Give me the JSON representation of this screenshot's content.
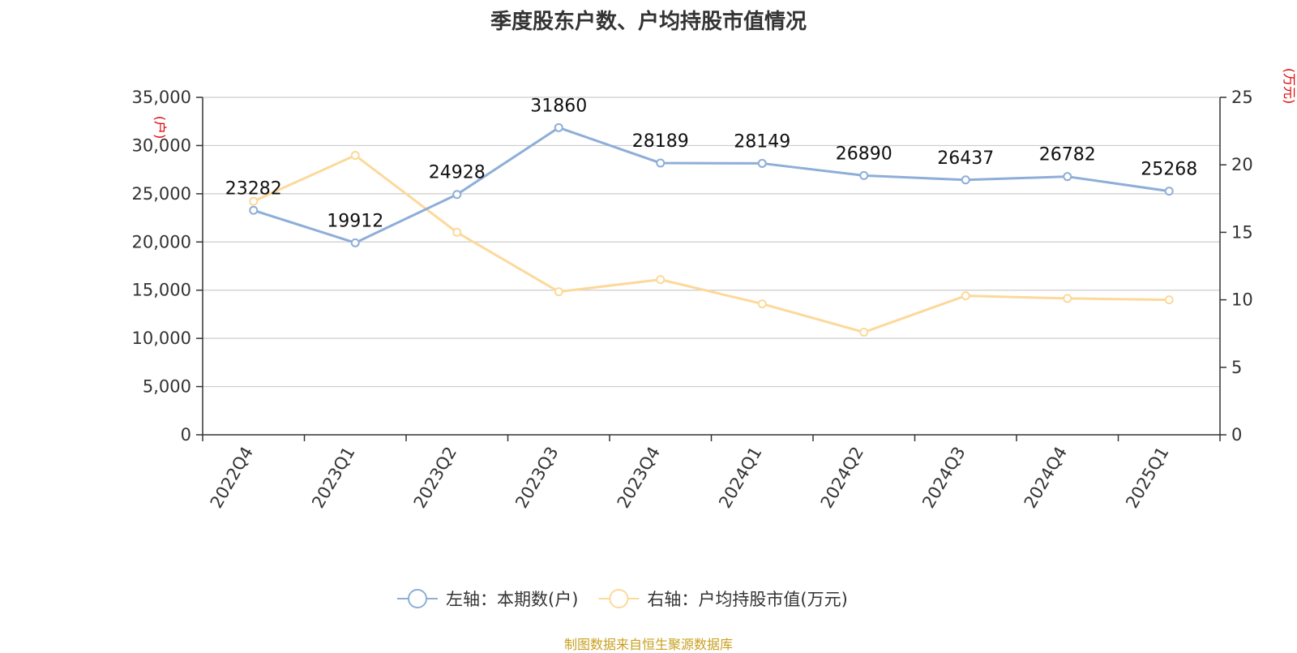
{
  "title": "季度股东户数、户均持股市值情况",
  "source": "制图数据来自恒生聚源数据库",
  "colors": {
    "holders": "#8eaed8",
    "value": "#fcd99a",
    "grid": "#cccccc",
    "axis": "#333333",
    "unit": "#e00000",
    "source": "#c8a020"
  },
  "chart_data": {
    "type": "line",
    "categories": [
      "2022Q4",
      "2023Q1",
      "2023Q2",
      "2023Q3",
      "2023Q4",
      "2024Q1",
      "2024Q2",
      "2024Q3",
      "2024Q4",
      "2025Q1"
    ],
    "series": [
      {
        "name": "左轴：本期数(户)",
        "axis": "left",
        "values": [
          23282,
          19912,
          24928,
          31860,
          28189,
          28149,
          26890,
          26437,
          26782,
          25268
        ],
        "labels_shown": true
      },
      {
        "name": "右轴：户均持股市值(万元)",
        "axis": "right",
        "values": [
          17.3,
          20.7,
          15.0,
          10.6,
          11.5,
          9.7,
          7.6,
          10.3,
          10.1,
          10.0
        ],
        "labels_shown": false
      }
    ],
    "y_left": {
      "unit": "(户)",
      "min": 0,
      "max": 35000,
      "ticks": [
        0,
        5000,
        10000,
        15000,
        20000,
        25000,
        30000,
        35000
      ],
      "tick_labels": [
        "0",
        "5,000",
        "10,000",
        "15,000",
        "20,000",
        "25,000",
        "30,000",
        "35,000"
      ]
    },
    "y_right": {
      "unit": "(万元)",
      "min": 0,
      "max": 25,
      "ticks": [
        0,
        5,
        10,
        15,
        20,
        25
      ],
      "tick_labels": [
        "0",
        "5",
        "10",
        "15",
        "20",
        "25"
      ]
    },
    "grid": true,
    "legend_position": "bottom"
  }
}
